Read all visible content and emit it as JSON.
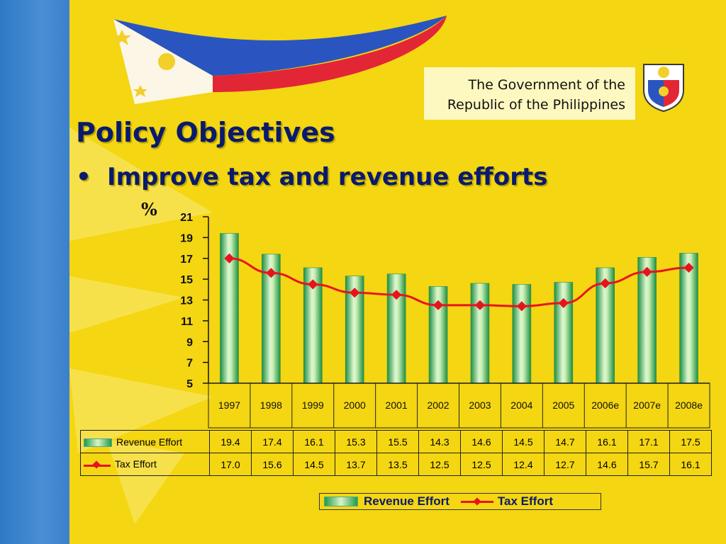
{
  "header": {
    "line1": "The Government of the",
    "line2": "Republic of the Philippines"
  },
  "slide": {
    "title": "Policy Objectives",
    "bullet_marker": "•",
    "bullet": "Improve tax and revenue efforts"
  },
  "colors": {
    "background": "#f4d612",
    "title": "#0a1a6c",
    "bar": "#1f9a4a",
    "line": "#e8141c",
    "left_bar": "#3a80cc"
  },
  "icons": {
    "flag": "philippine-flag-icon",
    "seal": "philippine-seal-icon"
  },
  "chart_data": {
    "type": "bar",
    "unit_label": "%",
    "categories": [
      "1997",
      "1998",
      "1999",
      "2000",
      "2001",
      "2002",
      "2003",
      "2004",
      "2005",
      "2006e",
      "2007e",
      "2008e"
    ],
    "ylim": [
      5,
      21
    ],
    "yticks": [
      5,
      7,
      9,
      11,
      13,
      15,
      17,
      19,
      21
    ],
    "series": [
      {
        "name": "Revenue Effort",
        "type": "bar",
        "values": [
          19.4,
          17.4,
          16.1,
          15.3,
          15.5,
          14.3,
          14.6,
          14.5,
          14.7,
          16.1,
          17.1,
          17.5
        ]
      },
      {
        "name": "Tax Effort",
        "type": "line",
        "values": [
          17.0,
          15.6,
          14.5,
          13.7,
          13.5,
          12.5,
          12.5,
          12.4,
          12.7,
          14.6,
          15.7,
          16.1
        ]
      }
    ],
    "table": {
      "rows": [
        {
          "label": "Revenue Effort",
          "values": [
            "19.4",
            "17.4",
            "16.1",
            "15.3",
            "15.5",
            "14.3",
            "14.6",
            "14.5",
            "14.7",
            "16.1",
            "17.1",
            "17.5"
          ]
        },
        {
          "label": "Tax Effort",
          "values": [
            "17.0",
            "15.6",
            "14.5",
            "13.7",
            "13.5",
            "12.5",
            "12.5",
            "12.4",
            "12.7",
            "14.6",
            "15.7",
            "16.1"
          ]
        }
      ]
    },
    "legend": {
      "placement": "bottom",
      "items": [
        "Revenue Effort",
        "Tax Effort"
      ]
    },
    "grid": false
  }
}
